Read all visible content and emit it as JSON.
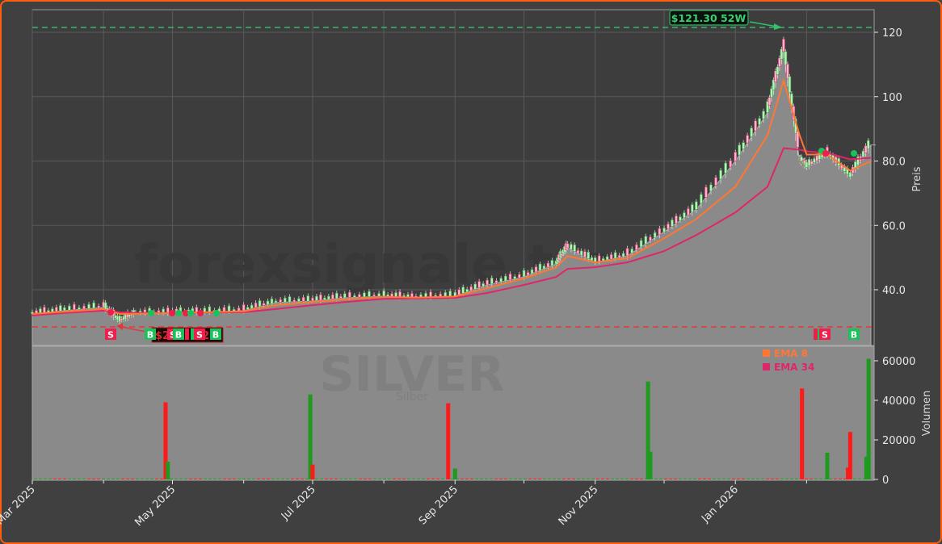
{
  "chart": {
    "symbol_watermark": "SILVER",
    "symbol_subtitle": "Silber",
    "site_watermark": "forexsignale.trade",
    "high_52w_label": "$121.30 52W",
    "high_52w_value": 121.3,
    "low_line_value": 29.0,
    "price_axis_label": "Preis",
    "volume_axis_label": "Volumen",
    "legend": [
      {
        "label": "EMA 8",
        "color": "#ff7733"
      },
      {
        "label": "EMA 34",
        "color": "#e0256a"
      }
    ],
    "colors": {
      "frame": "#ff5f0f",
      "background": "#404040",
      "pane": "#3d3d3d",
      "area": "#8a8a8a",
      "ema8": "#ff7733",
      "ema34": "#e0256a",
      "high_line": "#3cb371",
      "low_line": "#e03b3b",
      "buy": "#19c35a",
      "sell": "#ee1f4a",
      "vol_up": "#1e9a1e",
      "vol_down": "#ff1a1a"
    }
  },
  "chart_data": {
    "type": "line",
    "title": "SILVER (Silber)",
    "xlabel": "",
    "ylabel": "Preis",
    "ylim": [
      25,
      126
    ],
    "grid": true,
    "x_ticks": [
      "Mar 2025",
      "May 2025",
      "Jul 2025",
      "Sep 2025",
      "Nov 2025",
      "Jan 2026"
    ],
    "y_ticks": [
      "40.0",
      "60.0",
      "80.0",
      "100",
      "120"
    ],
    "volume_ticks": [
      "0",
      "20000",
      "40000",
      "60000"
    ],
    "volume_ylim": [
      0,
      65000
    ],
    "legend": [
      "EMA 8",
      "EMA 34"
    ],
    "annotations": [
      {
        "text": "$121.30 52W",
        "type": "52-week high"
      },
      {
        "text": "S",
        "type": "sell signal"
      },
      {
        "text": "B",
        "type": "buy signal"
      }
    ],
    "x": [
      "2025-03",
      "2025-03-15",
      "2025-04",
      "2025-04-08",
      "2025-04-15",
      "2025-05",
      "2025-05-15",
      "2025-06",
      "2025-06-15",
      "2025-07",
      "2025-07-15",
      "2025-08",
      "2025-08-15",
      "2025-09",
      "2025-09-15",
      "2025-10",
      "2025-10-15",
      "2025-10-20",
      "2025-11",
      "2025-11-15",
      "2025-12",
      "2025-12-15",
      "2026-01",
      "2026-01-15",
      "2026-01-22",
      "2026-01-29",
      "2026-02",
      "2026-02-10",
      "2026-02-20",
      "2026-03"
    ],
    "series": [
      {
        "name": "Close",
        "values": [
          32.5,
          33.5,
          34.5,
          30.0,
          32.5,
          32.8,
          33.0,
          33.5,
          36.0,
          36.5,
          37.5,
          38.0,
          37.5,
          38.0,
          41.5,
          44.0,
          48.0,
          53.0,
          48.5,
          50.5,
          58.0,
          65.0,
          80.0,
          95.0,
          114.0,
          80.0,
          78.0,
          82.0,
          75.0,
          85.0
        ]
      },
      {
        "name": "EMA 8",
        "values": [
          32.5,
          33.2,
          34.0,
          32.5,
          32.5,
          32.8,
          33.0,
          33.3,
          35.2,
          36.2,
          37.0,
          37.8,
          37.6,
          37.9,
          40.5,
          43.5,
          47.0,
          50.5,
          48.5,
          49.8,
          56.0,
          62.0,
          72.0,
          88.0,
          105.0,
          88.0,
          82.0,
          82.0,
          77.0,
          80.0
        ]
      },
      {
        "name": "EMA 34",
        "values": [
          32.0,
          32.8,
          33.5,
          33.0,
          32.8,
          32.8,
          32.9,
          33.0,
          34.0,
          35.2,
          36.2,
          37.2,
          37.3,
          37.5,
          39.0,
          41.5,
          44.0,
          46.5,
          47.0,
          48.5,
          52.0,
          57.0,
          64.0,
          72.0,
          84.0,
          83.5,
          83.0,
          82.5,
          80.5,
          81.0
        ]
      }
    ],
    "volume": [
      {
        "date": "2025-04-28",
        "value": 39000,
        "dir": "down"
      },
      {
        "date": "2025-04-29",
        "value": 9000,
        "dir": "up"
      },
      {
        "date": "2025-06-30",
        "value": 43000,
        "dir": "up"
      },
      {
        "date": "2025-07-01",
        "value": 7500,
        "dir": "down"
      },
      {
        "date": "2025-08-29",
        "value": 38500,
        "dir": "down"
      },
      {
        "date": "2025-09-01",
        "value": 5500,
        "dir": "up"
      },
      {
        "date": "2025-11-24",
        "value": 49500,
        "dir": "up"
      },
      {
        "date": "2025-11-25",
        "value": 14000,
        "dir": "up"
      },
      {
        "date": "2026-01-30",
        "value": 46000,
        "dir": "down"
      },
      {
        "date": "2026-02-10",
        "value": 13500,
        "dir": "up"
      },
      {
        "date": "2026-02-19",
        "value": 6000,
        "dir": "down"
      },
      {
        "date": "2026-02-20",
        "value": 24000,
        "dir": "down"
      },
      {
        "date": "2026-02-27",
        "value": 11500,
        "dir": "up"
      },
      {
        "date": "2026-02-28",
        "value": 61000,
        "dir": "up"
      }
    ]
  }
}
